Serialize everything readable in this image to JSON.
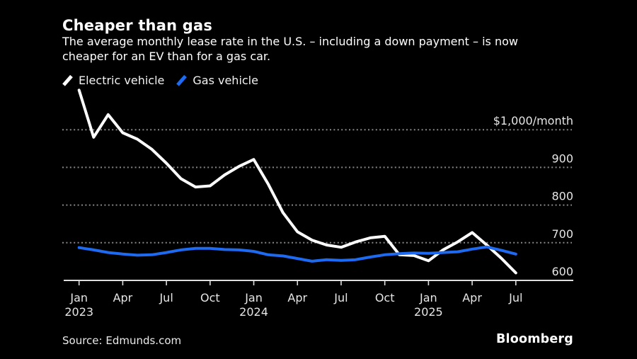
{
  "header": {
    "title": "Cheaper than gas",
    "subtitle_line1": "The average monthly lease rate in the U.S. – including a down payment – is now",
    "subtitle_line2": "cheaper for an EV than for a gas car."
  },
  "legend": [
    {
      "label": "Electric vehicle",
      "color": "#ffffff"
    },
    {
      "label": "Gas vehicle",
      "color": "#1e6af0"
    }
  ],
  "footer": {
    "source": "Source: Edmunds.com",
    "brand": "Bloomberg"
  },
  "chart_data": {
    "type": "line",
    "title": "Cheaper than gas",
    "ylabel": "$/month",
    "axis_range": [
      600,
      1000
    ],
    "grid": "dotted-horizontal",
    "legend_position": "top-left",
    "background": "#000000",
    "x": [
      "Jan 2023",
      "Feb 2023",
      "Mar 2023",
      "Apr 2023",
      "May 2023",
      "Jun 2023",
      "Jul 2023",
      "Aug 2023",
      "Sep 2023",
      "Oct 2023",
      "Nov 2023",
      "Dec 2023",
      "Jan 2024",
      "Feb 2024",
      "Mar 2024",
      "Apr 2024",
      "May 2024",
      "Jun 2024",
      "Jul 2024",
      "Aug 2024",
      "Sep 2024",
      "Oct 2024",
      "Nov 2024",
      "Dec 2024",
      "Jan 2025",
      "Feb 2025",
      "Mar 2025",
      "Apr 2025",
      "May 2025",
      "Jun 2025",
      "Jul 2025"
    ],
    "x_ticks": [
      {
        "index": 0,
        "month": "Jan",
        "year": "2023"
      },
      {
        "index": 3,
        "month": "Apr"
      },
      {
        "index": 6,
        "month": "Jul"
      },
      {
        "index": 9,
        "month": "Oct"
      },
      {
        "index": 12,
        "month": "Jan",
        "year": "2024"
      },
      {
        "index": 15,
        "month": "Apr"
      },
      {
        "index": 18,
        "month": "Jul"
      },
      {
        "index": 21,
        "month": "Oct"
      },
      {
        "index": 24,
        "month": "Jan",
        "year": "2025"
      },
      {
        "index": 27,
        "month": "Apr"
      },
      {
        "index": 30,
        "month": "Jul"
      }
    ],
    "y_ticks": [
      {
        "value": 1000,
        "label": "$1,000/month"
      },
      {
        "value": 900,
        "label": "900"
      },
      {
        "value": 800,
        "label": "800"
      },
      {
        "value": 700,
        "label": "700"
      },
      {
        "value": 600,
        "label": "600",
        "is_baseline": true
      }
    ],
    "series": [
      {
        "name": "Electric vehicle",
        "color": "#ffffff",
        "values": [
          1105,
          980,
          1040,
          992,
          975,
          948,
          911,
          870,
          848,
          851,
          880,
          903,
          921,
          855,
          780,
          729,
          707,
          694,
          688,
          702,
          713,
          717,
          668,
          666,
          652,
          681,
          702,
          727,
          694,
          659,
          620
        ]
      },
      {
        "name": "Gas vehicle",
        "color": "#1e6af0",
        "values": [
          687,
          681,
          674,
          670,
          667,
          668,
          674,
          681,
          685,
          685,
          682,
          681,
          677,
          668,
          665,
          658,
          651,
          655,
          653,
          655,
          662,
          668,
          671,
          673,
          672,
          674,
          676,
          683,
          689,
          680,
          670
        ]
      }
    ]
  }
}
